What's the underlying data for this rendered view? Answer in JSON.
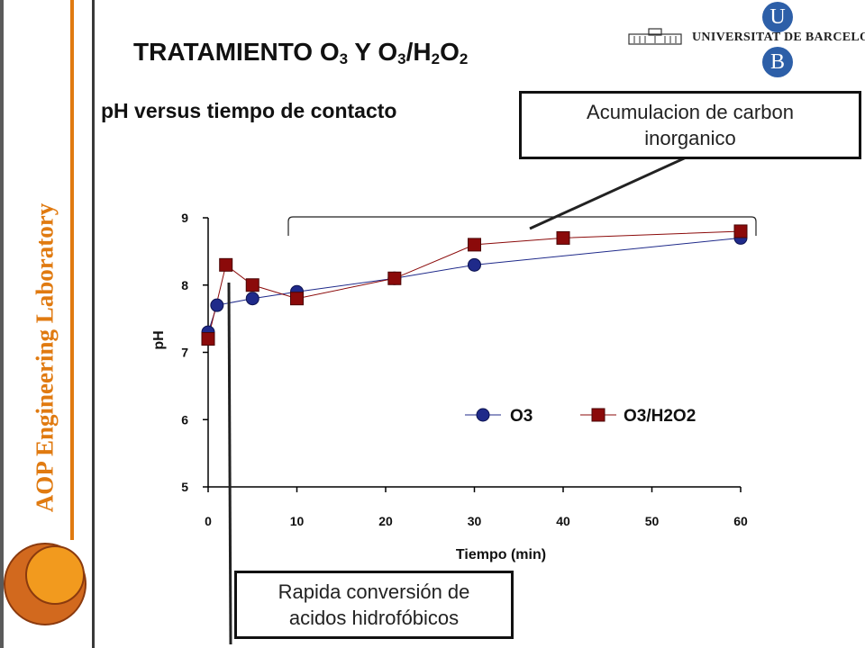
{
  "side_label": "AOP Engineering Laboratory",
  "title": {
    "parts": [
      "TRATAMIENTO O",
      "3",
      " Y  O",
      "3",
      "/H",
      "2",
      "O",
      "2"
    ]
  },
  "subtitle": "pH versus tiempo de contacto",
  "logo": {
    "name": "UNIVERSITAT DE BARCELONA",
    "letter_top": "U",
    "letter_bottom": "B",
    "color": "#2d5fa8"
  },
  "callouts": {
    "top": {
      "line1": "Acumulacion de carbon",
      "line2": "inorganico"
    },
    "bottom": {
      "line1": "Rapida conversión de",
      "line2": "acidos hidrofóbicos"
    }
  },
  "colors": {
    "o3": "#1f2a8a",
    "o3h2o2": "#8b0a0a",
    "accent": "#e07a10"
  },
  "chart_data": {
    "type": "line",
    "xlabel": "Tiempo (min)",
    "ylabel": "pH",
    "xlim": [
      0,
      60
    ],
    "ylim": [
      5,
      9
    ],
    "xticks": [
      0,
      10,
      20,
      30,
      40,
      50,
      60
    ],
    "yticks": [
      5,
      6,
      7,
      8,
      9
    ],
    "grid": false,
    "legend": "inside, center-right",
    "series": [
      {
        "name": "O3",
        "marker": "circle",
        "color": "#1f2a8a",
        "x": [
          0,
          1,
          5,
          10,
          21,
          30,
          60
        ],
        "y": [
          7.3,
          7.7,
          7.8,
          7.9,
          8.1,
          8.3,
          8.7
        ]
      },
      {
        "name": "O3/H2O2",
        "marker": "square",
        "color": "#8b0a0a",
        "x": [
          0,
          2,
          5,
          10,
          21,
          30,
          40,
          60
        ],
        "y": [
          7.2,
          8.3,
          8.0,
          7.8,
          8.1,
          8.6,
          8.7,
          8.8
        ]
      }
    ]
  }
}
